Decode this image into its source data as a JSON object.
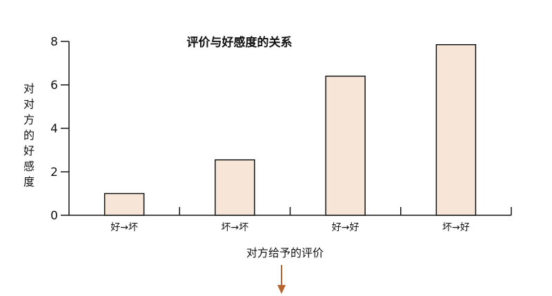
{
  "chart_data": {
    "type": "bar",
    "title": "评价与好感度的关系",
    "categories": [
      "好→坏",
      "坏→坏",
      "好→好",
      "坏→好"
    ],
    "values": [
      1.0,
      2.55,
      6.4,
      7.85
    ],
    "yticks": [
      "0",
      "2",
      "4",
      "6",
      "8"
    ],
    "ylim": [
      0,
      8
    ],
    "xlabel": "对方给予的评价",
    "ylabel": [
      "对",
      "对",
      "方",
      "的",
      "好",
      "感",
      "度"
    ],
    "grid": false,
    "legend": "none",
    "colors": {
      "bar_fill": "#f7e6d7",
      "bar_stroke": "#111111",
      "arrow": "#b8642e"
    }
  }
}
